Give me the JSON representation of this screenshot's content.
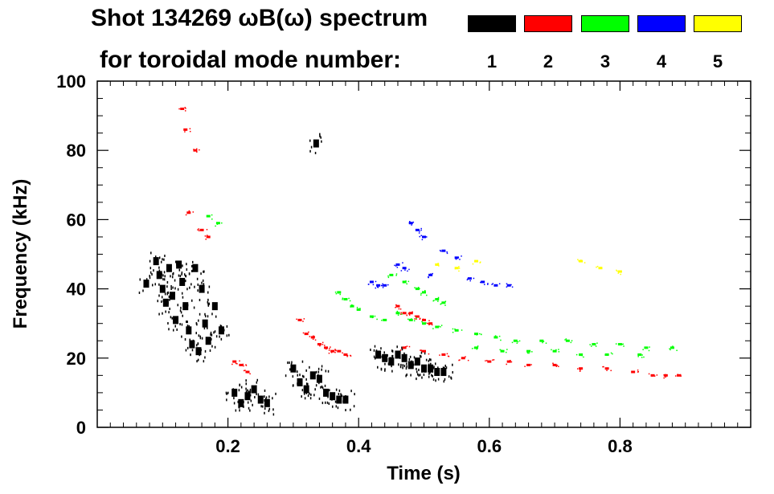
{
  "header": {
    "line1": "Shot 134269 ωB(ω) spectrum",
    "line2": "for toroidal mode number:"
  },
  "legend": [
    {
      "label": "1",
      "color": "#000000"
    },
    {
      "label": "2",
      "color": "#ff0000"
    },
    {
      "label": "3",
      "color": "#00ff00"
    },
    {
      "label": "4",
      "color": "#0000ff"
    },
    {
      "label": "5",
      "color": "#ffff00"
    }
  ],
  "chart_data": {
    "type": "scatter",
    "title": "Shot 134269 ωB(ω) spectrum",
    "xlabel": "Time (s)",
    "ylabel": "Frequency (kHz)",
    "xlim": [
      0.0,
      1.0
    ],
    "ylim": [
      0,
      100
    ],
    "xticks": [
      0.2,
      0.4,
      0.6,
      0.8
    ],
    "yticks": [
      0,
      20,
      40,
      60,
      80,
      100
    ],
    "series": [
      {
        "name": "1",
        "color": "#000000",
        "points": [
          [
            0.075,
            41.5
          ],
          [
            0.09,
            48
          ],
          [
            0.095,
            44
          ],
          [
            0.1,
            40
          ],
          [
            0.105,
            36
          ],
          [
            0.11,
            46
          ],
          [
            0.115,
            38
          ],
          [
            0.12,
            31
          ],
          [
            0.125,
            47
          ],
          [
            0.13,
            42
          ],
          [
            0.135,
            35
          ],
          [
            0.14,
            28
          ],
          [
            0.145,
            24
          ],
          [
            0.15,
            46
          ],
          [
            0.155,
            22
          ],
          [
            0.16,
            40
          ],
          [
            0.165,
            30
          ],
          [
            0.17,
            25
          ],
          [
            0.18,
            35
          ],
          [
            0.19,
            28
          ],
          [
            0.21,
            10
          ],
          [
            0.22,
            7
          ],
          [
            0.23,
            9
          ],
          [
            0.24,
            11
          ],
          [
            0.25,
            8
          ],
          [
            0.26,
            7
          ],
          [
            0.3,
            17
          ],
          [
            0.31,
            13
          ],
          [
            0.32,
            11
          ],
          [
            0.33,
            15
          ],
          [
            0.335,
            82
          ],
          [
            0.34,
            14
          ],
          [
            0.35,
            10
          ],
          [
            0.36,
            9
          ],
          [
            0.37,
            8
          ],
          [
            0.38,
            8
          ],
          [
            0.43,
            21
          ],
          [
            0.44,
            20
          ],
          [
            0.45,
            19
          ],
          [
            0.46,
            21
          ],
          [
            0.47,
            20
          ],
          [
            0.48,
            18
          ],
          [
            0.49,
            19
          ],
          [
            0.5,
            17
          ],
          [
            0.51,
            17
          ],
          [
            0.52,
            16
          ],
          [
            0.53,
            16
          ]
        ]
      },
      {
        "name": "2",
        "color": "#ff0000",
        "points": [
          [
            0.13,
            92
          ],
          [
            0.135,
            86
          ],
          [
            0.14,
            62
          ],
          [
            0.15,
            80
          ],
          [
            0.16,
            57
          ],
          [
            0.17,
            55
          ],
          [
            0.21,
            19
          ],
          [
            0.22,
            18
          ],
          [
            0.23,
            16
          ],
          [
            0.31,
            31
          ],
          [
            0.32,
            27
          ],
          [
            0.33,
            26
          ],
          [
            0.34,
            24
          ],
          [
            0.35,
            23
          ],
          [
            0.36,
            22
          ],
          [
            0.37,
            22
          ],
          [
            0.38,
            21
          ],
          [
            0.46,
            35
          ],
          [
            0.47,
            33
          ],
          [
            0.48,
            33
          ],
          [
            0.49,
            32
          ],
          [
            0.5,
            31
          ],
          [
            0.51,
            30
          ],
          [
            0.47,
            23
          ],
          [
            0.5,
            22
          ],
          [
            0.53,
            21
          ],
          [
            0.56,
            20
          ],
          [
            0.6,
            19
          ],
          [
            0.63,
            19
          ],
          [
            0.66,
            18
          ],
          [
            0.7,
            18
          ],
          [
            0.74,
            17
          ],
          [
            0.78,
            17
          ],
          [
            0.82,
            16
          ],
          [
            0.85,
            15
          ],
          [
            0.87,
            15
          ],
          [
            0.89,
            15
          ]
        ]
      },
      {
        "name": "3",
        "color": "#00ff00",
        "points": [
          [
            0.17,
            61
          ],
          [
            0.185,
            59
          ],
          [
            0.37,
            39
          ],
          [
            0.38,
            37
          ],
          [
            0.39,
            35
          ],
          [
            0.4,
            34
          ],
          [
            0.42,
            32
          ],
          [
            0.44,
            31
          ],
          [
            0.45,
            44
          ],
          [
            0.47,
            42
          ],
          [
            0.49,
            40
          ],
          [
            0.5,
            39
          ],
          [
            0.52,
            37
          ],
          [
            0.53,
            36
          ],
          [
            0.46,
            33
          ],
          [
            0.48,
            31
          ],
          [
            0.5,
            30
          ],
          [
            0.52,
            29
          ],
          [
            0.55,
            28
          ],
          [
            0.58,
            27
          ],
          [
            0.61,
            26
          ],
          [
            0.64,
            25
          ],
          [
            0.68,
            25
          ],
          [
            0.72,
            25
          ],
          [
            0.76,
            24
          ],
          [
            0.8,
            24
          ],
          [
            0.84,
            23
          ],
          [
            0.88,
            23
          ],
          [
            0.58,
            23
          ],
          [
            0.62,
            22
          ],
          [
            0.66,
            22
          ],
          [
            0.7,
            22
          ],
          [
            0.74,
            21
          ],
          [
            0.78,
            21
          ],
          [
            0.83,
            21
          ]
        ]
      },
      {
        "name": "4",
        "color": "#0000ff",
        "points": [
          [
            0.42,
            42
          ],
          [
            0.43,
            41
          ],
          [
            0.44,
            41
          ],
          [
            0.46,
            47
          ],
          [
            0.47,
            46
          ],
          [
            0.48,
            59
          ],
          [
            0.49,
            57
          ],
          [
            0.5,
            55
          ],
          [
            0.51,
            44
          ],
          [
            0.53,
            51
          ],
          [
            0.55,
            49
          ],
          [
            0.57,
            43
          ],
          [
            0.59,
            42
          ],
          [
            0.61,
            41
          ],
          [
            0.63,
            41
          ]
        ]
      },
      {
        "name": "5",
        "color": "#ffff00",
        "points": [
          [
            0.52,
            47
          ],
          [
            0.55,
            46
          ],
          [
            0.58,
            48
          ],
          [
            0.74,
            48
          ],
          [
            0.77,
            46
          ],
          [
            0.8,
            45
          ]
        ]
      }
    ]
  }
}
